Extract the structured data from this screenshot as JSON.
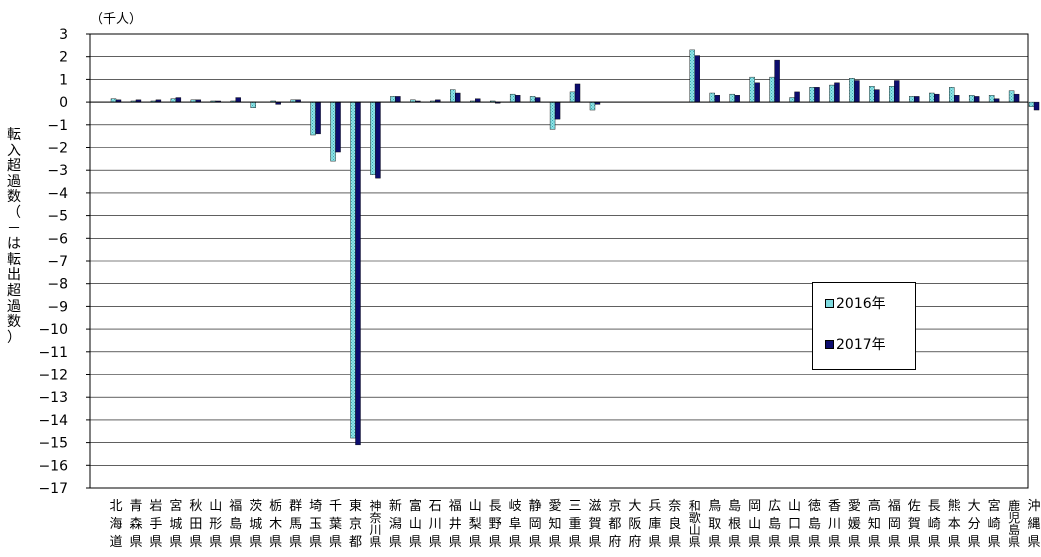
{
  "chart_data": {
    "type": "bar",
    "unit_label": "（千人）",
    "ylabel": "転入超過数（－は転出超過数）",
    "ylim": [
      -17,
      3
    ],
    "yticks": [
      3,
      2,
      1,
      0,
      -1,
      -2,
      -3,
      -4,
      -5,
      -6,
      -7,
      -8,
      -9,
      -10,
      -11,
      -12,
      -13,
      -14,
      -15,
      -16,
      -17
    ],
    "grid": true,
    "legend_position": "right",
    "categories": [
      "北海道",
      "青森県",
      "岩手県",
      "宮城県",
      "秋田県",
      "山形県",
      "福島県",
      "茨城県",
      "栃木県",
      "群馬県",
      "埼玉県",
      "千葉県",
      "東京都",
      "神奈川県",
      "新潟県",
      "富山県",
      "石川県",
      "福井県",
      "山梨県",
      "長野県",
      "岐阜県",
      "静岡県",
      "愛知県",
      "三重県",
      "滋賀県",
      "京都府",
      "大阪府",
      "兵庫県",
      "奈良県",
      "和歌山県",
      "鳥取県",
      "島根県",
      "岡山県",
      "広島県",
      "山口県",
      "徳島県",
      "香川県",
      "愛媛県",
      "高知県",
      "福岡県",
      "佐賀県",
      "長崎県",
      "熊本県",
      "大分県",
      "宮崎県",
      "鹿児島県",
      "沖縄県"
    ],
    "series": [
      {
        "name": "2016年",
        "color": "#7fdbe0",
        "values": [
          0.15,
          0.05,
          0.05,
          0.15,
          0.1,
          0.05,
          0.05,
          -0.25,
          0.05,
          0.1,
          -1.45,
          -2.6,
          -14.8,
          -3.2,
          0.25,
          0.1,
          0.05,
          0.55,
          0.05,
          0.05,
          0.35,
          0.25,
          -1.2,
          0.45,
          -0.35,
          0.0,
          0.0,
          0.0,
          0.0,
          2.3,
          0.4,
          0.35,
          1.1,
          1.1,
          0.2,
          0.65,
          0.75,
          1.05,
          0.7,
          0.7,
          0.25,
          0.4,
          0.65,
          0.3,
          0.3,
          0.5,
          -0.2
        ]
      },
      {
        "name": "2017年",
        "color": "#0c0c6e",
        "values": [
          0.1,
          0.1,
          0.1,
          0.2,
          0.1,
          0.05,
          0.2,
          0.0,
          -0.1,
          0.1,
          -1.4,
          -2.2,
          -15.1,
          -3.35,
          0.25,
          0.05,
          0.1,
          0.4,
          0.15,
          -0.05,
          0.3,
          0.2,
          -0.75,
          0.8,
          -0.1,
          0.0,
          0.0,
          0.0,
          0.0,
          2.05,
          0.3,
          0.3,
          0.85,
          1.85,
          0.45,
          0.65,
          0.85,
          0.95,
          0.55,
          0.95,
          0.25,
          0.35,
          0.3,
          0.25,
          0.15,
          0.35,
          -0.35
        ]
      }
    ]
  }
}
